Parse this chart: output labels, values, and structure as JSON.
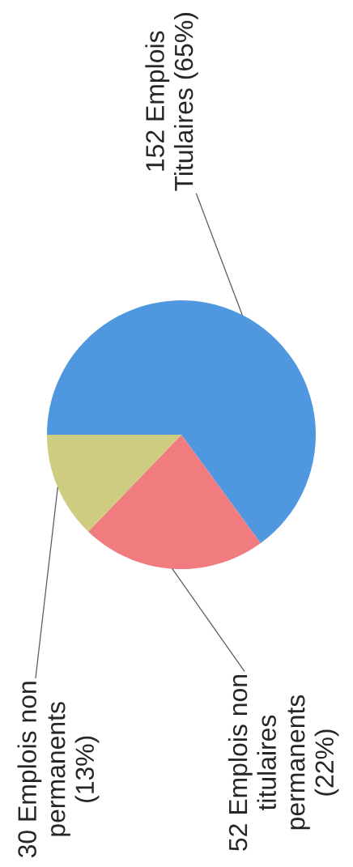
{
  "chart_data": {
    "type": "pie",
    "categories": [
      "152 Emplois\nTitulaires (65%)",
      "52 Emplois non\ntitulaires\npermanents\n(22%)",
      "30 Emplois non\npermanents\n(13%)"
    ],
    "values": [
      152,
      52,
      30
    ],
    "colors": [
      "#4f98e0",
      "#f07c80",
      "#cdcc80"
    ]
  }
}
